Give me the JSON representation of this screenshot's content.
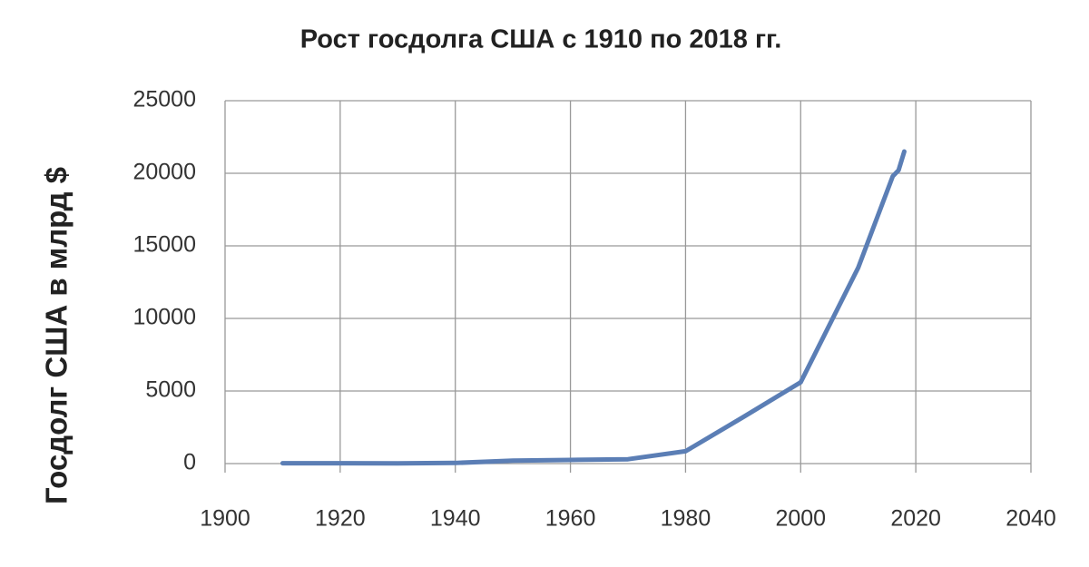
{
  "chart_data": {
    "type": "line",
    "title": "Рост госдолга США с 1910 по 2018 гг.",
    "y_label": "Госдолг США в млрд $",
    "x": [
      1910,
      1920,
      1930,
      1940,
      1950,
      1960,
      1970,
      1980,
      1990,
      2000,
      2010,
      2016,
      2017,
      2018
    ],
    "series": [
      {
        "name": "Госдолг",
        "color": "#5b7eb5",
        "values": [
          26,
          24,
          16,
          43,
          200,
          250,
          300,
          850,
          3200,
          5600,
          13500,
          19800,
          20200,
          21500
        ]
      }
    ],
    "xlim": [
      1900,
      2040
    ],
    "xticks": [
      1900,
      1920,
      1940,
      1960,
      1980,
      2000,
      2020,
      2040
    ],
    "ylim": [
      0,
      25000
    ],
    "yticks": [
      0,
      5000,
      10000,
      15000,
      20000,
      25000
    ],
    "grid": true
  }
}
